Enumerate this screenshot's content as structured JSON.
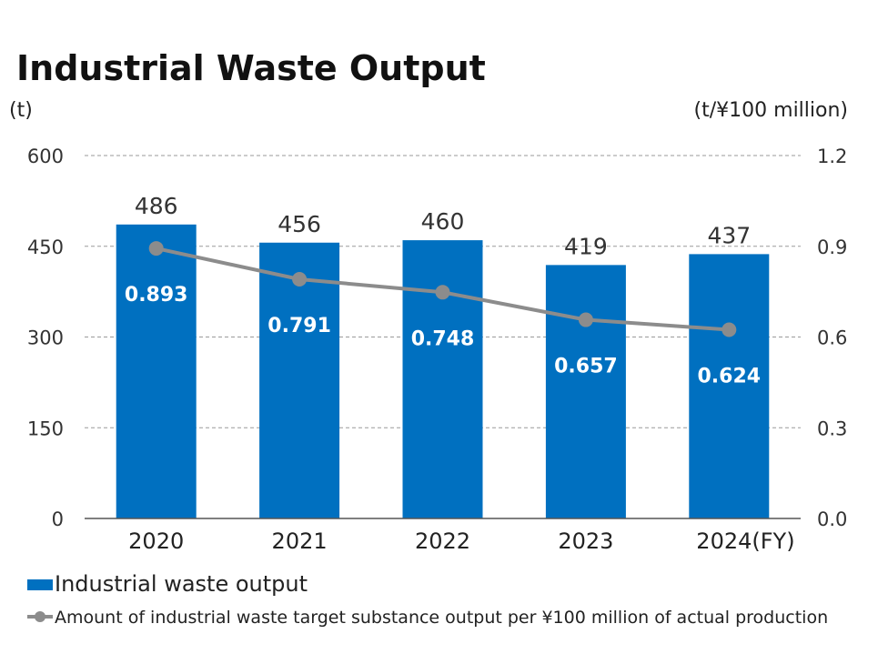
{
  "chart_data": {
    "type": "bar",
    "title": "Industrial Waste Output",
    "categories": [
      "2020",
      "2021",
      "2022",
      "2023",
      "2024(FY)"
    ],
    "left_axis": {
      "unit": "(t)",
      "ylim": [
        0,
        600
      ],
      "ticks": [
        "0",
        "150",
        "300",
        "450",
        "600"
      ]
    },
    "right_axis": {
      "unit": "(t/¥100 million)",
      "ylim": [
        0,
        1.2
      ],
      "ticks": [
        "0.0",
        "0.3",
        "0.6",
        "0.9",
        "1.2"
      ]
    },
    "grid": true,
    "legend_position": "bottom-left",
    "series": [
      {
        "name": "Industrial waste output",
        "type": "bar",
        "axis": "left",
        "color": "#0070C0",
        "values": [
          486,
          456,
          460,
          419,
          437
        ],
        "labels": [
          "486",
          "456",
          "460",
          "419",
          "437"
        ]
      },
      {
        "name": "Amount of industrial waste target substance output per ¥100 million of actual production",
        "type": "line",
        "axis": "right",
        "color": "#8C8C8C",
        "values": [
          0.893,
          0.791,
          0.748,
          0.657,
          0.624
        ],
        "labels": [
          "0.893",
          "0.791",
          "0.748",
          "0.657",
          "0.624"
        ]
      }
    ]
  }
}
